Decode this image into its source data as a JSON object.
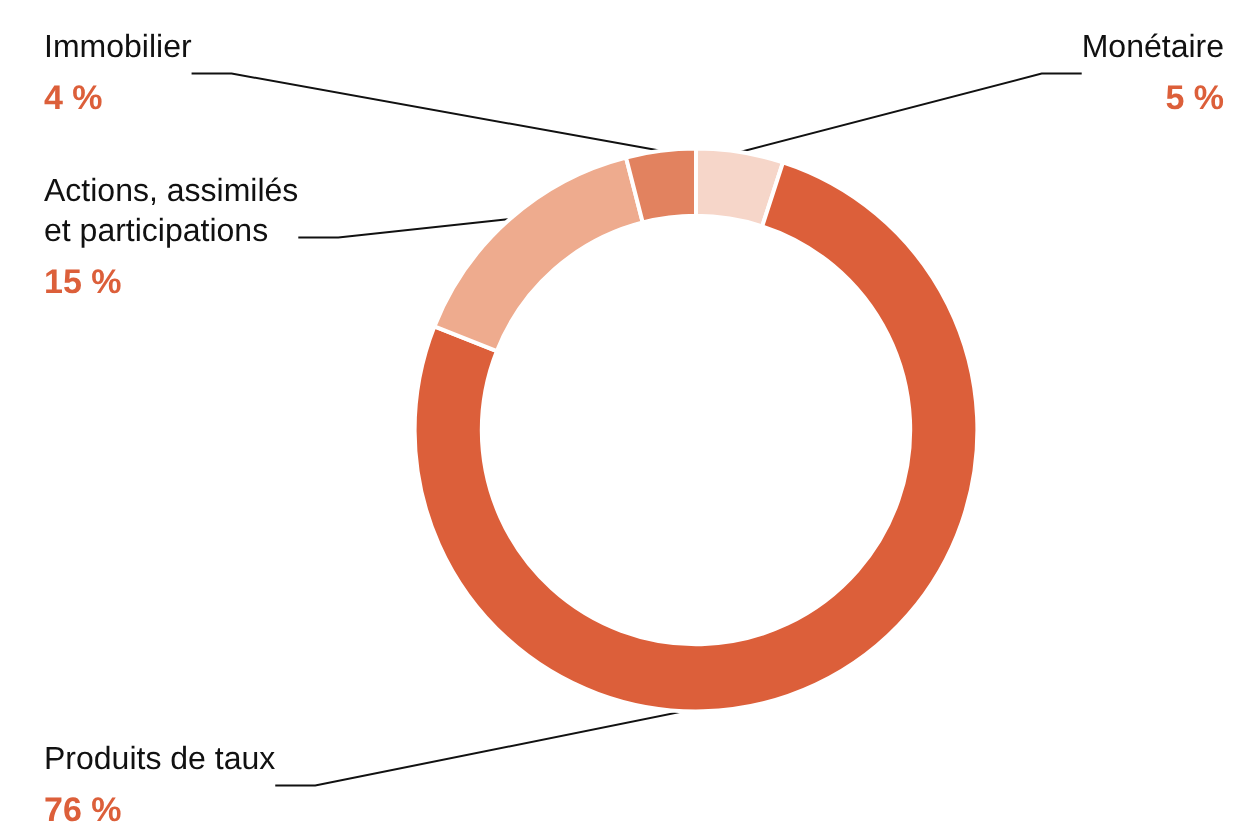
{
  "chart_data": {
    "type": "donut",
    "categories": [
      "Monétaire",
      "Produits de taux",
      "Actions, assimilés\net participations",
      "Immobilier"
    ],
    "values": [
      5,
      76,
      15,
      4
    ],
    "colors": [
      "#f6d6c9",
      "#dc5f3a",
      "#eeab8e",
      "#e2825f"
    ],
    "value_labels": [
      "5 %",
      "76 %",
      "15 %",
      "4 %"
    ],
    "legend": false
  }
}
